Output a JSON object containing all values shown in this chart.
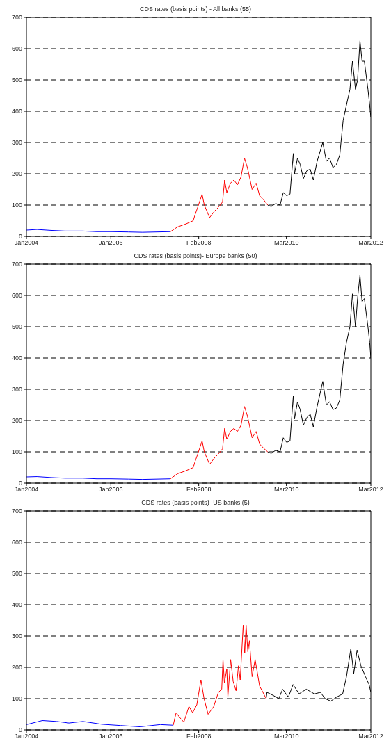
{
  "chart_data": [
    {
      "type": "line",
      "title": "CDS rates (basis points) - All banks (55)",
      "xlim": [
        "2004-01-01",
        "2012-03-01"
      ],
      "xticks": [
        {
          "value": "2004-01-01",
          "label": "Jan2004"
        },
        {
          "value": "2006-01-01",
          "label": "Jan2006"
        },
        {
          "value": "2008-02-01",
          "label": "Feb2008"
        },
        {
          "value": "2010-03-01",
          "label": "Mar2010"
        },
        {
          "value": "2012-03-01",
          "label": "Mar2012"
        }
      ],
      "ylim": [
        0,
        700
      ],
      "yticks": [
        0,
        100,
        200,
        300,
        400,
        500,
        600,
        700
      ],
      "grid": "y",
      "legend": false,
      "series": [
        {
          "color": "#0000ff",
          "x": [
            "2004-01-02",
            "2004-04-01",
            "2004-08-02",
            "2004-12-01",
            "2005-05-02",
            "2005-09-01",
            "2006-01-02",
            "2006-06-01",
            "2006-10-02",
            "2007-02-01",
            "2007-06-01"
          ],
          "values": [
            20,
            22,
            19,
            17,
            17,
            15,
            15,
            14,
            13,
            14,
            15
          ]
        },
        {
          "color": "#ff0000",
          "x": [
            "2007-06-01",
            "2007-08-01",
            "2007-10-15",
            "2007-12-15",
            "2008-01-01",
            "2008-01-25",
            "2008-03-01",
            "2008-03-20",
            "2008-05-05",
            "2008-06-15",
            "2008-07-25",
            "2008-08-25",
            "2008-09-12",
            "2008-10-01",
            "2008-11-01",
            "2008-12-01",
            "2009-01-01",
            "2009-02-01",
            "2009-03-03",
            "2009-03-28",
            "2009-04-15",
            "2009-05-08",
            "2009-06-12",
            "2009-07-12",
            "2009-08-20",
            "2009-09-20"
          ],
          "values": [
            15,
            30,
            40,
            50,
            70,
            95,
            135,
            100,
            60,
            80,
            95,
            110,
            180,
            140,
            170,
            180,
            165,
            190,
            250,
            220,
            190,
            150,
            170,
            130,
            115,
            100
          ]
        },
        {
          "color": "#000000",
          "x": [
            "2009-09-20",
            "2009-10-20",
            "2009-11-28",
            "2010-01-05",
            "2010-02-02",
            "2010-03-03",
            "2010-04-01",
            "2010-04-30",
            "2010-05-10",
            "2010-06-05",
            "2010-06-28",
            "2010-07-26",
            "2010-08-25",
            "2010-09-23",
            "2010-10-20",
            "2010-11-22",
            "2011-01-10",
            "2011-02-10",
            "2011-03-10",
            "2011-04-08",
            "2011-05-08",
            "2011-06-06",
            "2011-07-05",
            "2011-08-03",
            "2011-09-02",
            "2011-09-24",
            "2011-10-20",
            "2011-11-07",
            "2011-11-28",
            "2011-12-16",
            "2012-01-05",
            "2012-02-05",
            "2012-02-20",
            "2012-03-01"
          ],
          "values": [
            100,
            95,
            105,
            100,
            140,
            130,
            135,
            265,
            200,
            250,
            230,
            185,
            210,
            215,
            180,
            240,
            300,
            240,
            250,
            220,
            230,
            260,
            370,
            420,
            470,
            560,
            470,
            500,
            625,
            560,
            560,
            470,
            420,
            380
          ]
        }
      ]
    },
    {
      "type": "line",
      "title": "CDS rates (basis points)- Europe banks (50)",
      "xlim": [
        "2004-01-01",
        "2012-03-01"
      ],
      "xticks": [
        {
          "value": "2004-01-01",
          "label": "Jan2004"
        },
        {
          "value": "2006-01-01",
          "label": "Jan2006"
        },
        {
          "value": "2008-02-01",
          "label": "Feb2008"
        },
        {
          "value": "2010-03-01",
          "label": "Mar2010"
        },
        {
          "value": "2012-03-01",
          "label": "Mar2012"
        }
      ],
      "ylim": [
        0,
        700
      ],
      "yticks": [
        0,
        100,
        200,
        300,
        400,
        500,
        600,
        700
      ],
      "grid": "y",
      "legend": false,
      "series": [
        {
          "color": "#0000ff",
          "x": [
            "2004-01-02",
            "2004-04-01",
            "2004-08-02",
            "2004-12-01",
            "2005-05-02",
            "2005-09-01",
            "2006-01-02",
            "2006-06-01",
            "2006-10-02",
            "2007-02-01",
            "2007-06-01"
          ],
          "values": [
            20,
            21,
            18,
            16,
            16,
            14,
            14,
            13,
            12,
            13,
            14
          ]
        },
        {
          "color": "#ff0000",
          "x": [
            "2007-06-01",
            "2007-08-01",
            "2007-10-15",
            "2007-12-15",
            "2008-01-01",
            "2008-01-25",
            "2008-03-01",
            "2008-03-20",
            "2008-05-05",
            "2008-06-15",
            "2008-07-25",
            "2008-08-25",
            "2008-09-12",
            "2008-10-01",
            "2008-11-01",
            "2008-12-01",
            "2009-01-01",
            "2009-02-01",
            "2009-03-03",
            "2009-03-28",
            "2009-04-15",
            "2009-05-08",
            "2009-06-12",
            "2009-07-12",
            "2009-08-20",
            "2009-09-20"
          ],
          "values": [
            14,
            30,
            40,
            50,
            70,
            95,
            135,
            100,
            60,
            80,
            95,
            110,
            175,
            140,
            165,
            175,
            165,
            185,
            245,
            215,
            185,
            145,
            165,
            125,
            110,
            100
          ]
        },
        {
          "color": "#000000",
          "x": [
            "2009-09-20",
            "2009-10-20",
            "2009-11-28",
            "2010-01-05",
            "2010-02-02",
            "2010-03-03",
            "2010-04-01",
            "2010-04-30",
            "2010-05-10",
            "2010-06-05",
            "2010-06-28",
            "2010-07-26",
            "2010-08-25",
            "2010-09-23",
            "2010-10-20",
            "2010-11-22",
            "2011-01-10",
            "2011-02-10",
            "2011-03-10",
            "2011-04-08",
            "2011-05-08",
            "2011-06-06",
            "2011-07-05",
            "2011-08-03",
            "2011-09-02",
            "2011-09-24",
            "2011-10-20",
            "2011-11-07",
            "2011-11-28",
            "2011-12-16",
            "2012-01-05",
            "2012-02-05",
            "2012-02-20",
            "2012-03-01"
          ],
          "values": [
            100,
            95,
            105,
            100,
            145,
            130,
            135,
            280,
            205,
            260,
            235,
            185,
            210,
            220,
            180,
            245,
            325,
            250,
            260,
            235,
            240,
            265,
            380,
            450,
            500,
            605,
            500,
            590,
            665,
            580,
            590,
            500,
            450,
            400
          ]
        }
      ]
    },
    {
      "type": "line",
      "title": "CDS rates (basis points)- US banks (5)",
      "xlim": [
        "2004-01-01",
        "2012-03-01"
      ],
      "xticks": [
        {
          "value": "2004-01-01",
          "label": "Jan2004"
        },
        {
          "value": "2006-01-01",
          "label": "Jan2006"
        },
        {
          "value": "2008-02-01",
          "label": "Feb2008"
        },
        {
          "value": "2010-03-01",
          "label": "Mar2010"
        },
        {
          "value": "2012-03-01",
          "label": "Mar2012"
        }
      ],
      "ylim": [
        0,
        700
      ],
      "yticks": [
        0,
        100,
        200,
        300,
        400,
        500,
        600,
        700
      ],
      "grid": "y",
      "legend": false,
      "series": [
        {
          "color": "#0000ff",
          "x": [
            "2004-01-02",
            "2004-05-18",
            "2004-09-20",
            "2005-01-03",
            "2005-05-05",
            "2005-10-15",
            "2006-03-28",
            "2006-09-10",
            "2007-03-05",
            "2007-06-25"
          ],
          "values": [
            17,
            30,
            27,
            22,
            27,
            18,
            14,
            10,
            17,
            15
          ]
        },
        {
          "color": "#ff0000",
          "x": [
            "2007-06-25",
            "2007-07-20",
            "2007-08-20",
            "2007-09-25",
            "2007-11-08",
            "2007-12-10",
            "2008-01-15",
            "2008-02-20",
            "2008-03-18",
            "2008-04-22",
            "2008-06-10",
            "2008-07-20",
            "2008-08-18",
            "2008-08-29",
            "2008-09-10",
            "2008-10-01",
            "2008-10-10",
            "2008-11-03",
            "2008-11-25",
            "2008-12-20",
            "2009-01-10",
            "2009-01-25",
            "2009-02-20",
            "2009-03-05",
            "2009-03-17",
            "2009-04-01",
            "2009-04-15",
            "2009-05-08",
            "2009-06-03",
            "2009-07-12",
            "2009-08-10",
            "2009-09-06"
          ],
          "values": [
            15,
            55,
            40,
            25,
            75,
            55,
            80,
            160,
            100,
            50,
            75,
            120,
            130,
            225,
            150,
            195,
            105,
            225,
            155,
            125,
            205,
            160,
            335,
            245,
            335,
            250,
            285,
            170,
            225,
            140,
            120,
            100
          ]
        },
        {
          "color": "#000000",
          "x": [
            "2009-09-06",
            "2009-09-14",
            "2009-11-08",
            "2009-12-25",
            "2010-01-27",
            "2010-03-18",
            "2010-04-28",
            "2010-06-18",
            "2010-08-20",
            "2010-10-30",
            "2010-12-20",
            "2011-01-30",
            "2011-03-20",
            "2011-05-10",
            "2011-07-01",
            "2011-08-03",
            "2011-09-10",
            "2011-10-05",
            "2011-11-03",
            "2011-12-06",
            "2012-01-15",
            "2012-02-15",
            "2012-03-01"
          ],
          "values": [
            100,
            120,
            110,
            100,
            130,
            105,
            145,
            115,
            130,
            115,
            120,
            100,
            92,
            105,
            115,
            170,
            260,
            180,
            255,
            205,
            170,
            145,
            120
          ]
        }
      ]
    }
  ]
}
